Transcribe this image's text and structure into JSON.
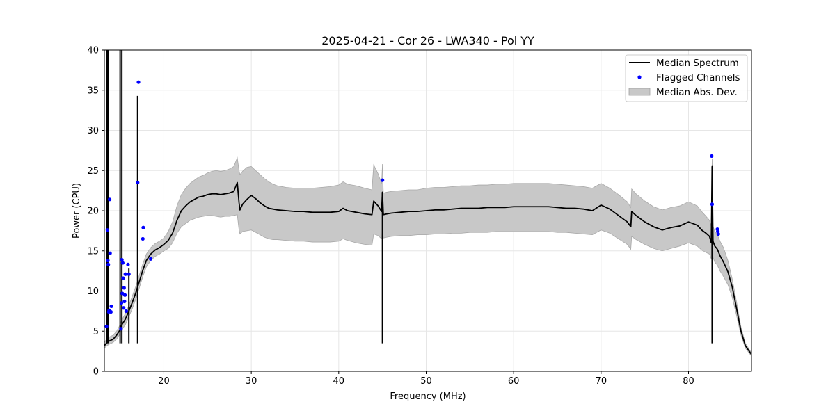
{
  "chart_data": {
    "type": "line",
    "title": "2025-04-21 - Cor 26 - LWA340 - Pol YY",
    "xlabel": "Frequency (MHz)",
    "ylabel": "Power (CPU)",
    "xlim": [
      13.2,
      87.2
    ],
    "ylim": [
      0,
      40
    ],
    "xticks": [
      20,
      30,
      40,
      50,
      60,
      70,
      80
    ],
    "yticks": [
      0,
      5,
      10,
      15,
      20,
      25,
      30,
      35,
      40
    ],
    "grid": true,
    "legend_position": "top-right",
    "legend": [
      {
        "label": "Median Spectrum",
        "kind": "line",
        "color": "#000000"
      },
      {
        "label": "Flagged Channels",
        "kind": "marker",
        "color": "#0000ff"
      },
      {
        "label": "Median Abs. Dev.",
        "kind": "patch",
        "color": "#c8c8c8"
      }
    ],
    "series": [
      {
        "name": "Median Spectrum",
        "color": "#000000",
        "x": [
          13.2,
          13.5,
          13.8,
          14.2,
          14.6,
          14.9,
          15.2,
          15.6,
          16.0,
          16.4,
          16.8,
          17.2,
          17.6,
          18.0,
          18.5,
          19.0,
          19.5,
          20.0,
          20.5,
          21.0,
          21.5,
          22.0,
          22.5,
          23.0,
          23.5,
          24.0,
          24.5,
          25.0,
          25.5,
          26.0,
          26.5,
          27.0,
          27.5,
          28.0,
          28.4,
          28.6,
          28.7,
          29.0,
          29.5,
          30.0,
          30.5,
          31.0,
          31.5,
          32.0,
          32.5,
          33.0,
          34.0,
          35.0,
          36.0,
          37.0,
          38.0,
          39.0,
          40.0,
          40.5,
          41.0,
          42.0,
          43.0,
          43.8,
          44.0,
          44.5,
          44.9,
          45.0,
          45.1,
          45.5,
          46.0,
          47.0,
          48.0,
          49.0,
          50.0,
          51.0,
          52.0,
          53.0,
          54.0,
          55.0,
          56.0,
          57.0,
          58.0,
          59.0,
          60.0,
          61.0,
          62.0,
          63.0,
          64.0,
          65.0,
          66.0,
          67.0,
          68.0,
          69.0,
          70.0,
          71.0,
          72.0,
          73.0,
          73.4,
          73.5,
          74.0,
          75.0,
          76.0,
          77.0,
          78.0,
          79.0,
          80.0,
          81.0,
          81.5,
          82.0,
          82.4,
          82.6,
          82.7,
          82.8,
          83.0,
          83.3,
          83.6,
          84.0,
          84.5,
          85.0,
          85.5,
          86.0,
          86.5,
          87.2
        ],
        "y": [
          3.2,
          3.6,
          3.8,
          4.0,
          4.5,
          5.0,
          5.8,
          6.5,
          7.5,
          8.6,
          9.8,
          11.2,
          12.6,
          13.8,
          14.6,
          15.1,
          15.4,
          15.8,
          16.3,
          17.2,
          18.8,
          20.0,
          20.6,
          21.1,
          21.4,
          21.7,
          21.8,
          22.0,
          22.1,
          22.1,
          22.0,
          22.1,
          22.2,
          22.4,
          23.5,
          21.0,
          20.1,
          20.8,
          21.4,
          21.9,
          21.5,
          21.0,
          20.6,
          20.3,
          20.2,
          20.1,
          20.0,
          19.9,
          19.9,
          19.8,
          19.8,
          19.8,
          19.9,
          20.3,
          20.0,
          19.8,
          19.6,
          19.5,
          21.2,
          20.6,
          19.9,
          22.3,
          19.5,
          19.6,
          19.7,
          19.8,
          19.9,
          19.9,
          20.0,
          20.1,
          20.1,
          20.2,
          20.3,
          20.3,
          20.3,
          20.4,
          20.4,
          20.4,
          20.5,
          20.5,
          20.5,
          20.5,
          20.5,
          20.4,
          20.3,
          20.3,
          20.2,
          20.0,
          20.7,
          20.2,
          19.4,
          18.6,
          18.0,
          19.9,
          19.4,
          18.6,
          18.0,
          17.6,
          17.9,
          18.1,
          18.6,
          18.2,
          17.6,
          17.2,
          16.8,
          16.0,
          25.5,
          16.2,
          15.6,
          15.2,
          14.4,
          13.6,
          12.4,
          10.5,
          7.8,
          5.0,
          3.2,
          2.1
        ]
      },
      {
        "name": "Median Abs. Dev.",
        "color": "#c8c8c8",
        "x": [
          13.2,
          13.5,
          13.8,
          14.2,
          14.6,
          14.9,
          15.2,
          15.6,
          16.0,
          16.4,
          16.8,
          17.2,
          17.6,
          18.0,
          18.5,
          19.0,
          19.5,
          20.0,
          20.5,
          21.0,
          21.5,
          22.0,
          22.5,
          23.0,
          23.5,
          24.0,
          24.5,
          25.0,
          25.5,
          26.0,
          26.5,
          27.0,
          27.5,
          28.0,
          28.4,
          28.6,
          28.7,
          29.0,
          29.5,
          30.0,
          30.5,
          31.0,
          31.5,
          32.0,
          32.5,
          33.0,
          34.0,
          35.0,
          36.0,
          37.0,
          38.0,
          39.0,
          40.0,
          40.5,
          41.0,
          42.0,
          43.0,
          43.8,
          44.0,
          44.5,
          44.9,
          45.0,
          45.1,
          45.5,
          46.0,
          47.0,
          48.0,
          49.0,
          50.0,
          51.0,
          52.0,
          53.0,
          54.0,
          55.0,
          56.0,
          57.0,
          58.0,
          59.0,
          60.0,
          61.0,
          62.0,
          63.0,
          64.0,
          65.0,
          66.0,
          67.0,
          68.0,
          69.0,
          70.0,
          71.0,
          72.0,
          73.0,
          73.4,
          73.5,
          74.0,
          75.0,
          76.0,
          77.0,
          78.0,
          79.0,
          80.0,
          81.0,
          81.5,
          82.0,
          82.4,
          82.6,
          82.7,
          82.8,
          83.0,
          83.3,
          83.6,
          84.0,
          84.5,
          85.0,
          85.5,
          86.0,
          86.5,
          87.2
        ],
        "upper": [
          3.6,
          4.1,
          4.3,
          4.5,
          5.0,
          5.6,
          6.4,
          7.2,
          8.2,
          9.4,
          10.6,
          12.0,
          13.4,
          14.6,
          15.4,
          15.9,
          16.2,
          16.6,
          17.4,
          18.6,
          20.6,
          22.0,
          22.8,
          23.4,
          23.8,
          24.2,
          24.4,
          24.7,
          24.9,
          25.0,
          24.9,
          25.0,
          25.2,
          25.5,
          26.6,
          25.0,
          24.5,
          24.9,
          25.4,
          25.5,
          25.0,
          24.5,
          24.0,
          23.6,
          23.3,
          23.1,
          22.9,
          22.8,
          22.8,
          22.8,
          22.9,
          23.0,
          23.2,
          23.6,
          23.3,
          23.1,
          22.8,
          22.6,
          25.7,
          24.6,
          23.4,
          25.8,
          22.2,
          22.3,
          22.4,
          22.5,
          22.6,
          22.6,
          22.8,
          22.9,
          22.9,
          23.0,
          23.1,
          23.1,
          23.2,
          23.2,
          23.3,
          23.3,
          23.4,
          23.4,
          23.4,
          23.4,
          23.4,
          23.3,
          23.2,
          23.1,
          23.0,
          22.8,
          23.4,
          22.8,
          22.0,
          21.1,
          20.4,
          22.7,
          22.1,
          21.2,
          20.5,
          20.1,
          20.4,
          20.6,
          21.1,
          20.6,
          19.9,
          19.3,
          18.8,
          18.0,
          26.5,
          18.1,
          17.4,
          17.0,
          16.2,
          15.4,
          13.8,
          11.5,
          8.6,
          5.5,
          3.5,
          2.3
        ],
        "lower": [
          2.9,
          3.2,
          3.4,
          3.6,
          4.0,
          4.5,
          5.2,
          5.8,
          6.8,
          7.8,
          9.0,
          10.4,
          11.8,
          13.0,
          13.8,
          14.3,
          14.6,
          15.0,
          15.3,
          16.0,
          17.2,
          18.0,
          18.4,
          18.8,
          19.0,
          19.2,
          19.3,
          19.4,
          19.4,
          19.3,
          19.2,
          19.3,
          19.3,
          19.4,
          19.5,
          17.6,
          17.1,
          17.4,
          17.5,
          17.6,
          17.3,
          17.0,
          16.7,
          16.5,
          16.4,
          16.4,
          16.3,
          16.2,
          16.2,
          16.1,
          16.1,
          16.1,
          16.2,
          16.5,
          16.3,
          16.0,
          15.8,
          15.7,
          17.1,
          16.9,
          16.5,
          18.2,
          16.6,
          16.7,
          16.8,
          16.9,
          16.9,
          17.0,
          17.0,
          17.1,
          17.1,
          17.2,
          17.2,
          17.3,
          17.3,
          17.3,
          17.4,
          17.4,
          17.4,
          17.4,
          17.4,
          17.4,
          17.4,
          17.3,
          17.3,
          17.2,
          17.1,
          17.0,
          17.6,
          17.2,
          16.5,
          15.8,
          15.2,
          16.8,
          16.4,
          15.8,
          15.3,
          15.0,
          15.3,
          15.6,
          16.0,
          15.6,
          15.1,
          14.8,
          14.6,
          14.0,
          24.5,
          14.2,
          13.6,
          13.2,
          12.5,
          11.8,
          10.8,
          9.2,
          6.9,
          4.5,
          2.9,
          1.9
        ]
      },
      {
        "name": "Flagged Channels",
        "color": "#0000ff",
        "x": [
          13.45,
          13.55,
          13.6,
          13.65,
          13.7,
          13.75,
          13.8,
          13.85,
          13.95,
          14.0,
          15.1,
          15.15,
          15.2,
          15.25,
          15.3,
          15.35,
          15.4,
          15.45,
          15.5,
          15.55,
          15.6,
          15.7,
          15.9,
          16.0,
          17.0,
          17.1,
          17.6,
          17.65,
          18.5,
          45.0,
          82.65,
          82.7,
          83.3,
          83.35,
          83.4
        ],
        "y": [
          5.6,
          17.6,
          13.8,
          13.3,
          7.4,
          7.6,
          21.4,
          14.7,
          7.4,
          8.1,
          5.3,
          8.5,
          13.9,
          9.7,
          13.5,
          11.6,
          7.9,
          10.4,
          8.7,
          9.5,
          12.1,
          7.5,
          13.3,
          12.1,
          23.5,
          36.0,
          16.5,
          17.9,
          14.0,
          23.8,
          26.8,
          20.8,
          17.7,
          17.4,
          17.1
        ]
      }
    ],
    "spikes": [
      {
        "x": 13.5,
        "y": 40
      },
      {
        "x": 13.6,
        "y": 40
      },
      {
        "x": 15.0,
        "y": 40
      },
      {
        "x": 15.2,
        "y": 40
      },
      {
        "x": 16.0,
        "y": 12.8
      },
      {
        "x": 17.0,
        "y": 34.3
      },
      {
        "x": 45.0,
        "y": 22.3
      },
      {
        "x": 82.7,
        "y": 25.5
      }
    ]
  }
}
